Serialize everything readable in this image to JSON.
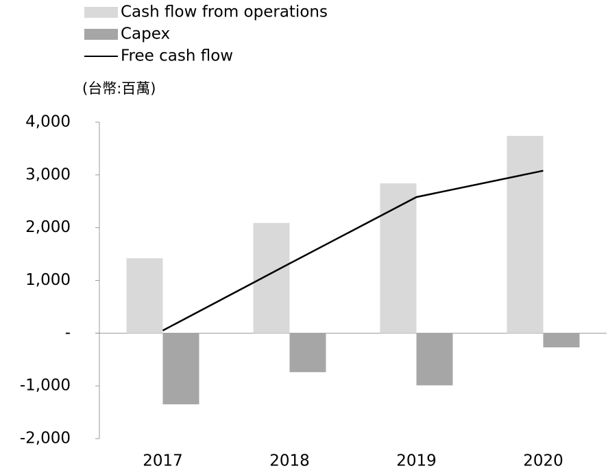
{
  "chart_data": {
    "type": "bar_line",
    "unit_label": "(台幣:百萬)",
    "categories": [
      "2017",
      "2018",
      "2019",
      "2020"
    ],
    "series": [
      {
        "name": "Cash flow from operations",
        "type": "bar",
        "color": "#d9d9d9",
        "values": [
          1420,
          2090,
          2840,
          3740
        ]
      },
      {
        "name": "Capex",
        "type": "bar",
        "color": "#a6a6a6",
        "values": [
          -1350,
          -740,
          -990,
          -270
        ]
      },
      {
        "name": "Free cash flow",
        "type": "line",
        "color": "#000000",
        "values": [
          50,
          1320,
          2580,
          3080
        ]
      }
    ],
    "ylim": [
      -2000,
      4000
    ],
    "yticks": [
      {
        "value": -2000,
        "label": "-2,000"
      },
      {
        "value": -1000,
        "label": "-1,000"
      },
      {
        "value": 0,
        "label": "-"
      },
      {
        "value": 1000,
        "label": "1,000"
      },
      {
        "value": 2000,
        "label": "2,000"
      },
      {
        "value": 3000,
        "label": "3,000"
      },
      {
        "value": 4000,
        "label": "4,000"
      }
    ],
    "grid": false,
    "legend": "top-left"
  }
}
